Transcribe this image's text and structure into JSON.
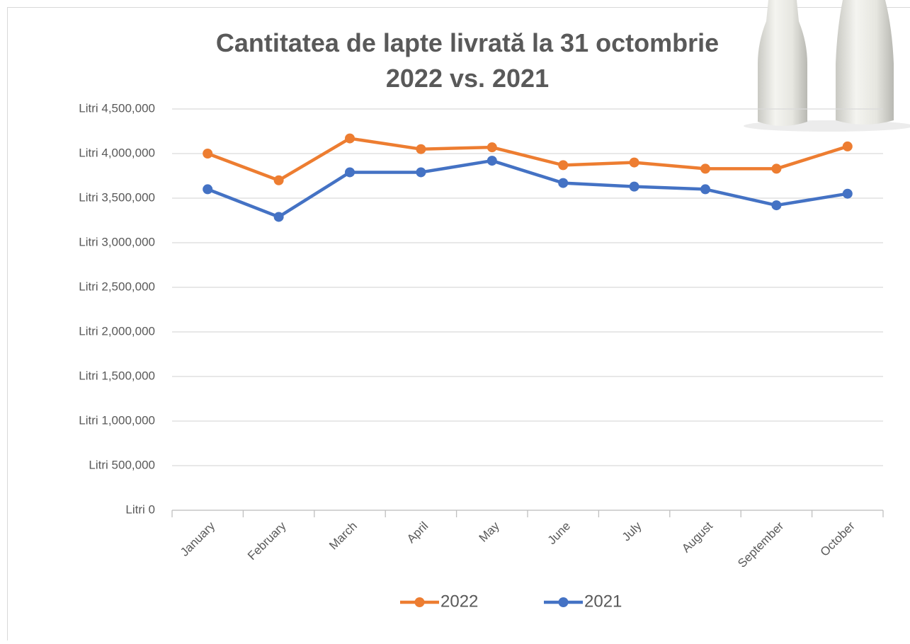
{
  "chart_data": {
    "type": "line",
    "title": [
      "Cantitatea de lapte livrată la 31 octombrie",
      "2022 vs. 2021"
    ],
    "categories": [
      "January",
      "February",
      "March",
      "April",
      "May",
      "June",
      "July",
      "August",
      "September",
      "October"
    ],
    "series": [
      {
        "name": "2022",
        "color": "#ed7d31",
        "values": [
          4000000,
          3700000,
          4170000,
          4050000,
          4070000,
          3870000,
          3900000,
          3830000,
          3830000,
          4080000
        ]
      },
      {
        "name": "2021",
        "color": "#4472c4",
        "values": [
          3600000,
          3290000,
          3790000,
          3790000,
          3920000,
          3670000,
          3630000,
          3600000,
          3420000,
          3550000
        ]
      }
    ],
    "ylim": [
      0,
      4500000
    ],
    "yticks": [
      {
        "value": 0,
        "label": "Litri 0"
      },
      {
        "value": 500000,
        "label": "Litri 500,000"
      },
      {
        "value": 1000000,
        "label": "Litri 1,000,000"
      },
      {
        "value": 1500000,
        "label": "Litri 1,500,000"
      },
      {
        "value": 2000000,
        "label": "Litri 2,000,000"
      },
      {
        "value": 2500000,
        "label": "Litri 2,500,000"
      },
      {
        "value": 3000000,
        "label": "Litri 3,000,000"
      },
      {
        "value": 3500000,
        "label": "Litri 3,500,000"
      },
      {
        "value": 4000000,
        "label": "Litri 4,000,000"
      },
      {
        "value": 4500000,
        "label": "Litri 4,500,000"
      }
    ],
    "grid": true,
    "legend": "bottom"
  }
}
